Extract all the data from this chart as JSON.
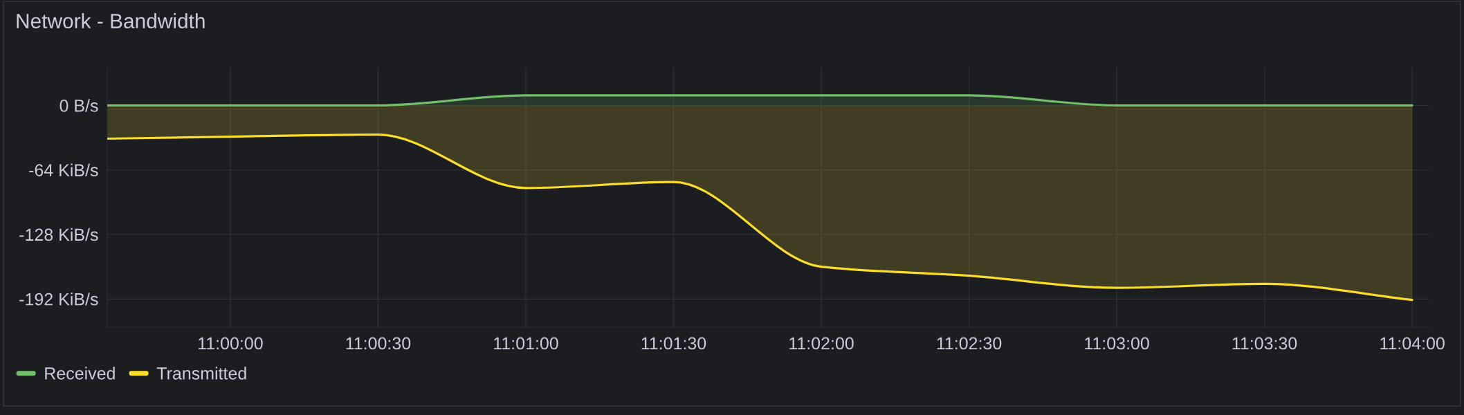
{
  "chart_data": {
    "type": "area",
    "title": "Network - Bandwidth",
    "x": [
      10.993056,
      11.0,
      11.008333,
      11.016667,
      11.025,
      11.033333,
      11.041667,
      11.05,
      11.058333,
      11.066667
    ],
    "series": [
      {
        "name": "Received",
        "color": "#73bf69",
        "values": [
          0,
          0,
          0,
          10,
          10,
          10,
          10,
          0,
          0,
          0
        ]
      },
      {
        "name": "Transmitted",
        "color": "#fade2a",
        "values": [
          -33,
          -31,
          -29,
          -82,
          -76,
          -160,
          -169,
          -181,
          -177,
          -193
        ]
      }
    ],
    "xlim": [
      10.993056,
      11.067639
    ],
    "xticks": [
      {
        "value": 11.0,
        "label": "11:00:00"
      },
      {
        "value": 11.008333,
        "label": "11:00:30"
      },
      {
        "value": 11.016667,
        "label": "11:01:00"
      },
      {
        "value": 11.025,
        "label": "11:01:30"
      },
      {
        "value": 11.033333,
        "label": "11:02:00"
      },
      {
        "value": 11.041667,
        "label": "11:02:30"
      },
      {
        "value": 11.05,
        "label": "11:03:00"
      },
      {
        "value": 11.058333,
        "label": "11:03:30"
      },
      {
        "value": 11.066667,
        "label": "11:04:00"
      }
    ],
    "ylim": [
      -220,
      38
    ],
    "yticks": [
      {
        "value": 0,
        "label": "0 B/s"
      },
      {
        "value": -64,
        "label": "-64 KiB/s"
      },
      {
        "value": -128,
        "label": "-128 KiB/s"
      },
      {
        "value": -192,
        "label": "-192 KiB/s"
      }
    ],
    "grid": true,
    "legend": "bottom left"
  }
}
